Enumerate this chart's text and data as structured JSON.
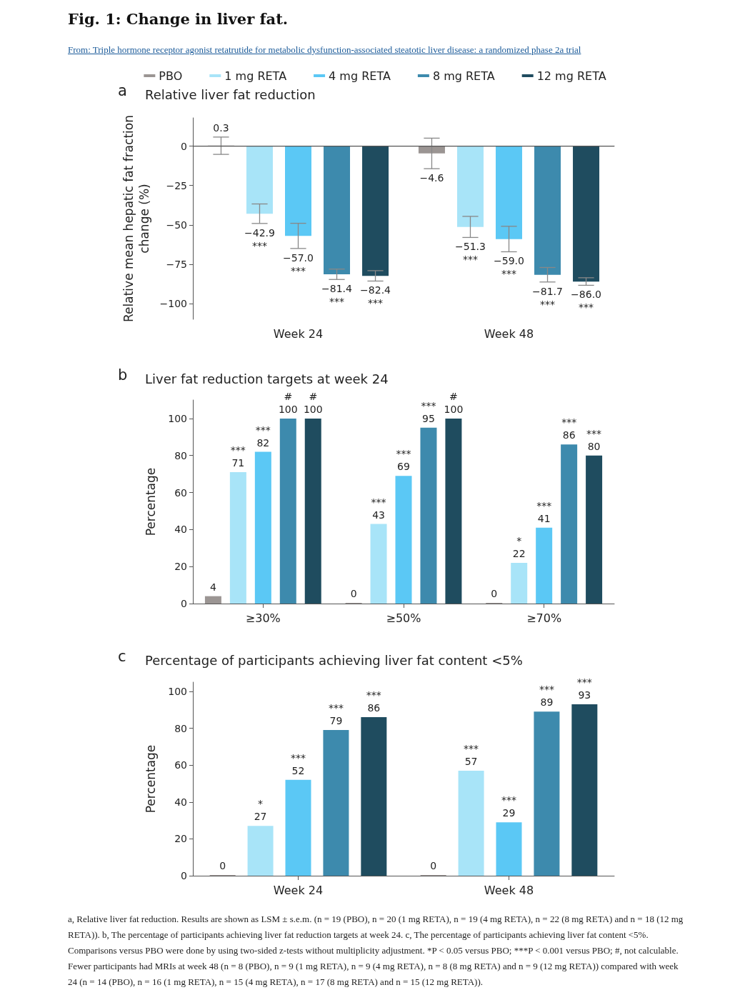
{
  "chart_data": [
    {
      "type": "bar",
      "title": "Relative liver fat reduction",
      "ylabel": "Relative mean hepatic fat fraction\nchange (%)",
      "annotations": [
        "a",
        "Fig. 1: Change in liver fat.",
        "From: Triple hormone receptor agonist retatrutide for metabolic dysfunction-associated steatotic liver disease: a randomized phase 2a trial"
      ],
      "categories": [
        "Week 24",
        "Week 48"
      ],
      "series": [
        {
          "name": "PBO",
          "color": "#9b9593",
          "values": [
            0.3,
            -4.6
          ],
          "errors": [
            5.5,
            9.7
          ],
          "value_labels": [
            "0.3",
            "−4.6"
          ]
        },
        {
          "name": "1 mg RETA",
          "color": "#a8e4f8",
          "values": [
            -42.9,
            -51.3
          ],
          "errors": [
            6.2,
            6.7
          ],
          "value_labels": [
            "−42.9\n***",
            "−51.3\n***"
          ]
        },
        {
          "name": "4 mg RETA",
          "color": "#5bc8f5",
          "values": [
            -57.0,
            -59.0
          ],
          "errors": [
            8.0,
            8.1
          ],
          "value_labels": [
            "−57.0\n***",
            "−59.0\n***"
          ]
        },
        {
          "name": "8 mg RETA",
          "color": "#3d8aad",
          "values": [
            -81.4,
            -81.7
          ],
          "errors": [
            3.3,
            4.6
          ],
          "value_labels": [
            "−81.4\n***",
            "−81.7\n***"
          ]
        },
        {
          "name": "12 mg RETA",
          "color": "#1f4c5f",
          "values": [
            -82.4,
            -86.0
          ],
          "errors": [
            3.3,
            2.4
          ],
          "value_labels": [
            "−82.4\n***",
            "−86.0\n***"
          ]
        }
      ],
      "ylim": [
        -110,
        18
      ],
      "yticks": [
        {
          "value": -100,
          "label": "−100"
        },
        {
          "value": -75,
          "label": "−75"
        },
        {
          "value": -50,
          "label": "−50"
        },
        {
          "value": -25,
          "label": "−25"
        },
        0
      ],
      "ref_lines": [
        {
          "axis": "y",
          "value": 0,
          "color": "#555555"
        }
      ],
      "grid": false,
      "legend": "top"
    },
    {
      "type": "bar",
      "title": "Liver fat reduction targets at week 24",
      "ylabel": "Percentage",
      "annotations": [
        "b"
      ],
      "categories": [
        "≥30%",
        "≥50%",
        "≥70%"
      ],
      "series": [
        {
          "color": "#9b9593",
          "values": [
            4,
            0,
            0
          ],
          "value_labels": [
            "4",
            "0",
            "0"
          ]
        },
        {
          "color": "#a8e4f8",
          "values": [
            71,
            43,
            22
          ],
          "value_labels": [
            "***\n71",
            "***\n43",
            "*\n22"
          ]
        },
        {
          "color": "#5bc8f5",
          "values": [
            82,
            69,
            41
          ],
          "value_labels": [
            "***\n82",
            "***\n69",
            "***\n41"
          ]
        },
        {
          "color": "#3d8aad",
          "values": [
            100,
            95,
            86
          ],
          "value_labels": [
            "#\n100",
            "***\n95",
            "***\n86"
          ]
        },
        {
          "color": "#1f4c5f",
          "values": [
            100,
            100,
            80
          ],
          "value_labels": [
            "#\n100",
            "#\n100",
            "***\n80"
          ]
        }
      ],
      "ylim": [
        0,
        110
      ],
      "yticks": [
        0,
        20,
        40,
        60,
        80,
        100
      ],
      "grid": false
    },
    {
      "type": "bar",
      "title": "Percentage of participants achieving liver fat content <5%",
      "ylabel": "Percentage",
      "annotations": [
        "c",
        "a, Relative liver fat reduction. Results are shown as LSM ± s.e.m. (n = 19 (PBO), n = 20 (1 mg RETA), n = 19 (4 mg RETA), n = 22 (8 mg RETA) and n = 18 (12 mg RETA)). b, The percentage of participants achieving liver fat reduction targets at week 24. c, The percentage of participants achieving liver fat content <5%. Comparisons versus PBO were done by using two-sided z-tests without multiplicity adjustment. *P < 0.05 versus PBO; ***P < 0.001 versus PBO; #, not calculable. Fewer participants had MRIs at week 48 (n = 8 (PBO), n = 9 (1 mg RETA), n = 9 (4 mg RETA), n = 8 (8 mg RETA) and n = 9 (12 mg RETA)) compared with week 24 (n = 14 (PBO), n = 16 (1 mg RETA), n = 15 (4 mg RETA), n = 17 (8 mg RETA) and n = 15 (12 mg RETA))."
      ],
      "categories": [
        "Week 24",
        "Week 48"
      ],
      "series": [
        {
          "color": "#9b9593",
          "values": [
            0,
            0
          ],
          "value_labels": [
            "0",
            "0"
          ]
        },
        {
          "color": "#a8e4f8",
          "values": [
            27,
            57
          ],
          "value_labels": [
            "*\n27",
            "***\n57"
          ]
        },
        {
          "color": "#5bc8f5",
          "values": [
            52,
            29
          ],
          "value_labels": [
            "***\n52",
            "***\n29"
          ]
        },
        {
          "color": "#3d8aad",
          "values": [
            79,
            89
          ],
          "value_labels": [
            "***\n79",
            "***\n89"
          ]
        },
        {
          "color": "#1f4c5f",
          "values": [
            86,
            93
          ],
          "value_labels": [
            "***\n86",
            "***\n93"
          ]
        }
      ],
      "ylim": [
        0,
        105
      ],
      "yticks": [
        0,
        20,
        40,
        60,
        80,
        100
      ],
      "grid": false
    }
  ]
}
